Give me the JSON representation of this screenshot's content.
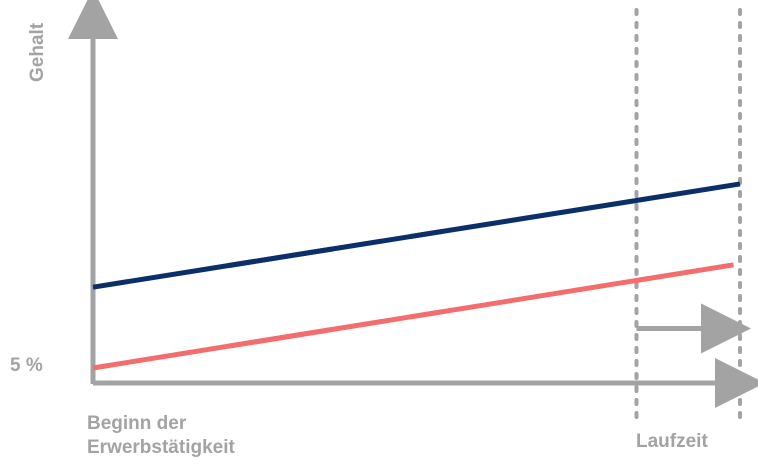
{
  "chart_data": {
    "type": "line",
    "ylabel": "Gehalt",
    "xlabel": "Laufzeit",
    "y_tick_label": "5 %",
    "x_start_label": "Beginn der Erwerbstätigkeit",
    "x_start_lines": [
      "Beginn der",
      "Erwerbstätigkeit"
    ],
    "title": "",
    "xlim": [
      0,
      1
    ],
    "ylim": [
      0,
      1
    ],
    "series": [
      {
        "color": "#0b2f6b",
        "dash_segments": [
          [
            0.0,
            0.37
          ],
          [
            0.21,
            0.54
          ],
          [
            0.49,
            1.0
          ]
        ],
        "x": [
          0.0,
          1.0
        ],
        "y": [
          0.47,
          1.07
        ]
      },
      {
        "color": "#f46d6d",
        "dash_segments": [
          [
            0.0,
            0.37
          ],
          [
            0.21,
            0.54
          ],
          [
            0.49,
            0.99
          ]
        ],
        "x": [
          0.0,
          0.99
        ],
        "y": [
          0.0,
          0.6
        ]
      }
    ],
    "markers": {
      "vertical_dotted_x": [
        0.84,
        1.0
      ],
      "arrow": {
        "from_x": 0.84,
        "to_x": 1.0,
        "y": 0.23
      }
    },
    "axis_color": "#a3a3a3",
    "grid": false
  }
}
